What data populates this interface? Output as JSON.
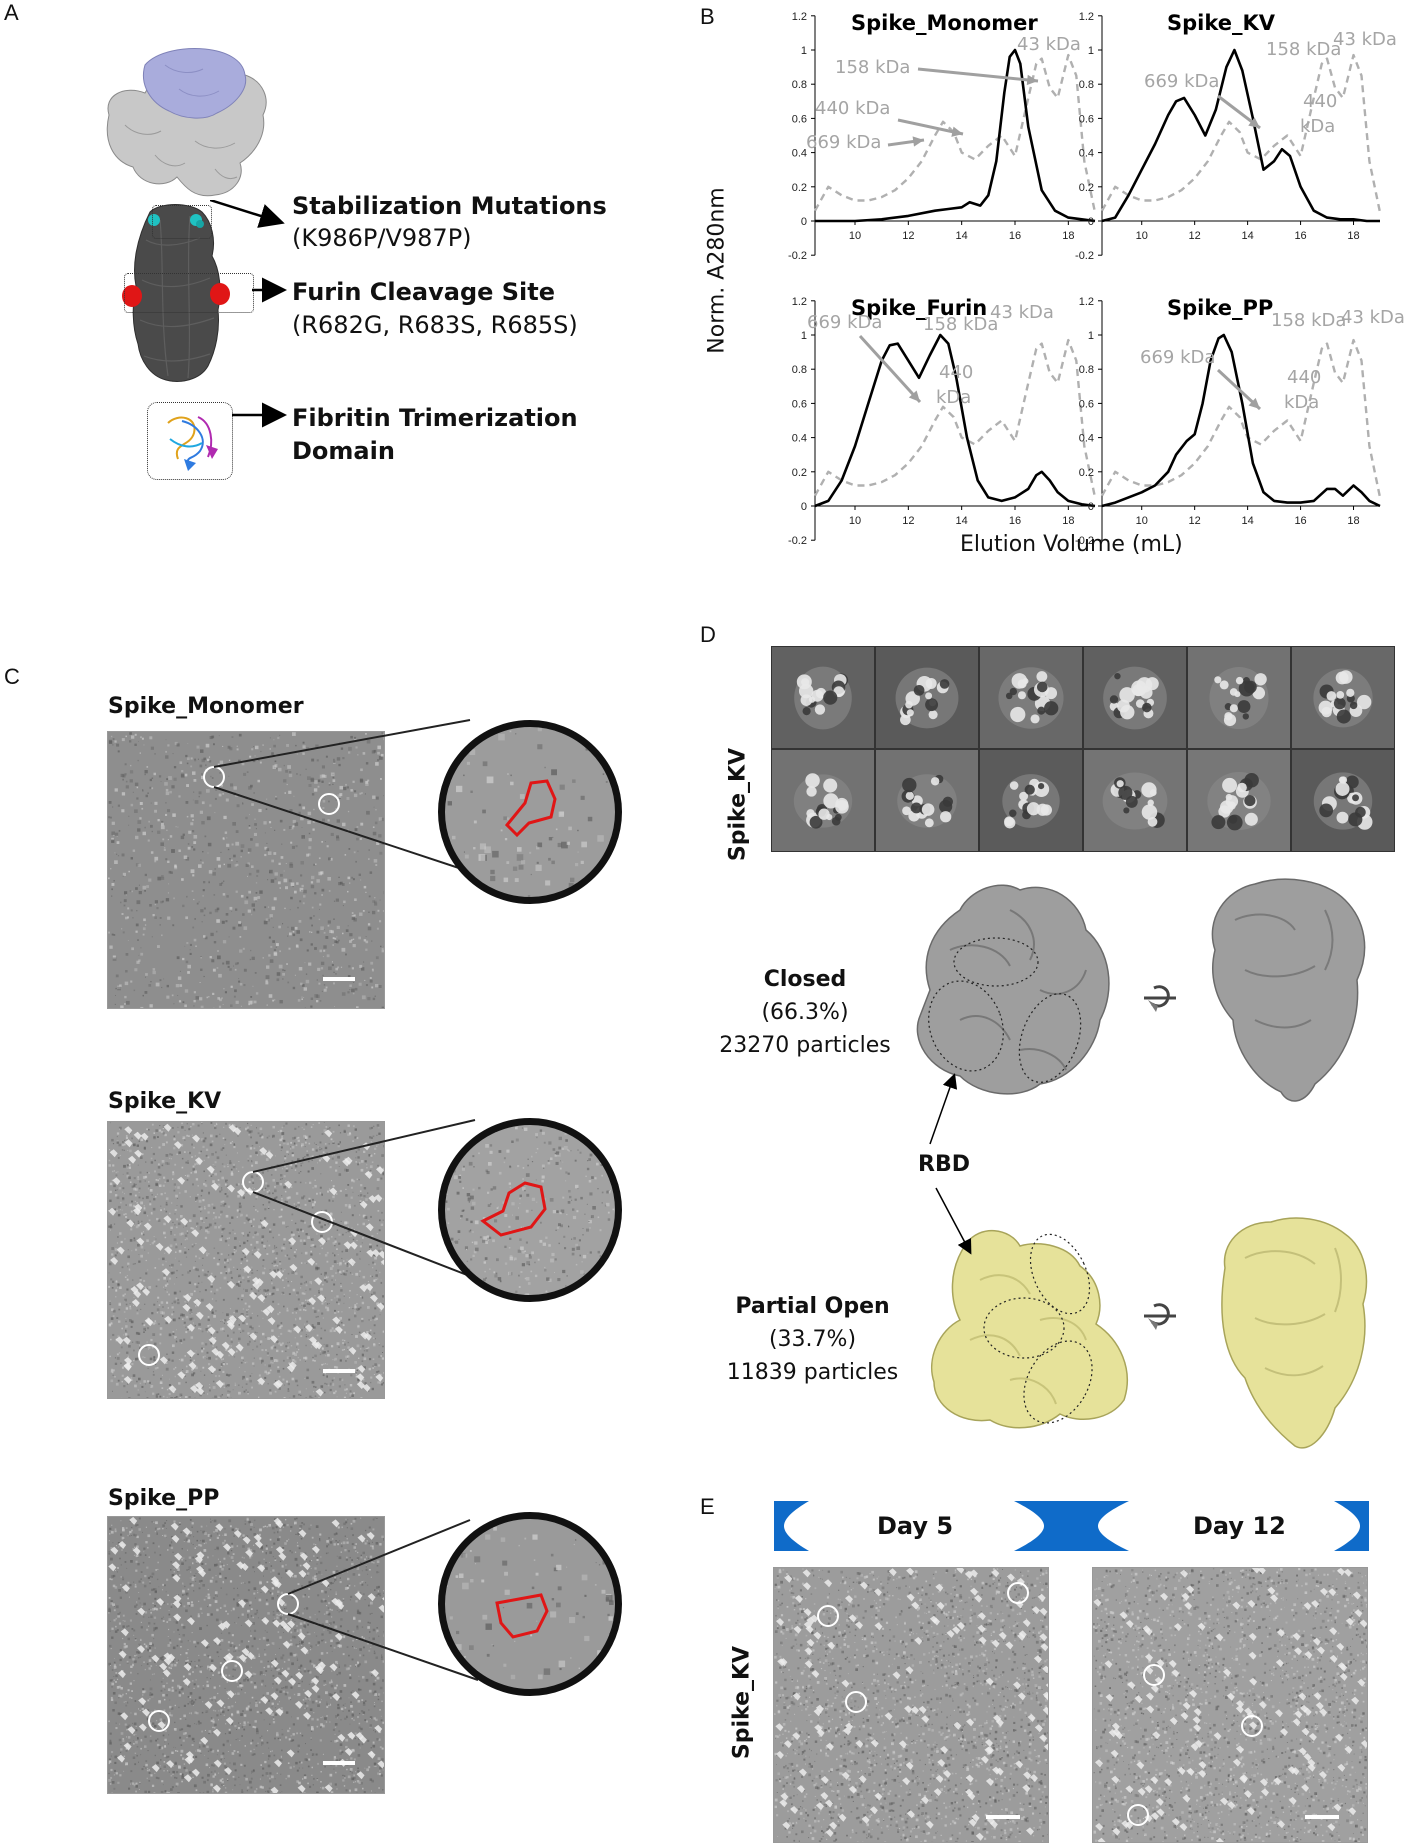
{
  "figure": {
    "panel_labels": {
      "a": "A",
      "b": "B",
      "c": "C",
      "d": "D",
      "e": "E"
    }
  },
  "panel_a": {
    "callouts": [
      {
        "title": "Stabilization Mutations",
        "detail": "(K986P/V987P)"
      },
      {
        "title": "Furin Cleavage Site",
        "detail": "(R682G, R683S, R685S)"
      },
      {
        "title": "Fibritin Trimerization",
        "detail": "Domain"
      }
    ]
  },
  "panel_b": {
    "y_axis_label": "Norm. A280nm",
    "x_axis_label": "Elution Volume (mL)",
    "y_ticks": [
      "1.2",
      "1",
      "0.8",
      "0.6",
      "0.4",
      "0.2",
      "0",
      "-0.2"
    ],
    "x_ticks": [
      "10",
      "12",
      "14",
      "16",
      "18"
    ],
    "marker_labels": {
      "m669": "669 kDa",
      "m440": "440 kDa",
      "m440a": "440",
      "m440b": "kDa",
      "m158": "158 kDa",
      "m43": "43 kDa"
    }
  },
  "chart_data": [
    {
      "type": "line",
      "title": "Spike_Monomer",
      "xlabel": "Elution Volume (mL)",
      "ylabel": "Norm. A280nm",
      "xlim": [
        8.5,
        19
      ],
      "ylim": [
        -0.2,
        1.2
      ],
      "series": [
        {
          "x": [
            8.5,
            9,
            10,
            11,
            12,
            13,
            13.5,
            14,
            14.3,
            14.7,
            15,
            15.3,
            15.6,
            15.8,
            16,
            16.2,
            16.5,
            17,
            17.5,
            18,
            18.5,
            19
          ],
          "y": [
            0,
            0,
            0,
            0.01,
            0.03,
            0.06,
            0.07,
            0.08,
            0.11,
            0.09,
            0.15,
            0.35,
            0.75,
            0.96,
            1.0,
            0.92,
            0.55,
            0.18,
            0.06,
            0.02,
            0.01,
            0
          ]
        },
        {
          "x": [
            8.5,
            9,
            9.5,
            10,
            10.5,
            11,
            11.5,
            12,
            12.5,
            13,
            13.3,
            13.7,
            14,
            14.5,
            15,
            15.5,
            16,
            16.5,
            16.8,
            17,
            17.3,
            17.6,
            18,
            18.3,
            18.6,
            19
          ],
          "y": [
            0.06,
            0.2,
            0.15,
            0.12,
            0.12,
            0.14,
            0.18,
            0.25,
            0.35,
            0.5,
            0.58,
            0.52,
            0.4,
            0.36,
            0.44,
            0.5,
            0.38,
            0.72,
            0.92,
            0.95,
            0.78,
            0.72,
            0.97,
            0.85,
            0.35,
            0.05
          ]
        }
      ]
    },
    {
      "type": "line",
      "title": "Spike_KV",
      "xlabel": "Elution Volume (mL)",
      "ylabel": "Norm. A280nm",
      "xlim": [
        8.5,
        19
      ],
      "ylim": [
        -0.2,
        1.2
      ],
      "series": [
        {
          "x": [
            8.5,
            9,
            9.5,
            10,
            10.5,
            11,
            11.3,
            11.6,
            12,
            12.4,
            12.8,
            13.2,
            13.5,
            13.8,
            14.2,
            14.6,
            15,
            15.3,
            15.6,
            16,
            16.5,
            17,
            17.5,
            18,
            18.5,
            19
          ],
          "y": [
            0,
            0.02,
            0.15,
            0.3,
            0.45,
            0.62,
            0.7,
            0.72,
            0.62,
            0.5,
            0.65,
            0.9,
            1.0,
            0.88,
            0.6,
            0.3,
            0.35,
            0.42,
            0.38,
            0.2,
            0.06,
            0.02,
            0.01,
            0.01,
            0,
            0
          ]
        },
        {
          "x": [
            8.5,
            9,
            9.5,
            10,
            10.5,
            11,
            11.5,
            12,
            12.5,
            13,
            13.3,
            13.7,
            14,
            14.5,
            15,
            15.5,
            16,
            16.5,
            16.8,
            17,
            17.3,
            17.6,
            18,
            18.3,
            18.6,
            19
          ],
          "y": [
            0.06,
            0.2,
            0.15,
            0.12,
            0.12,
            0.14,
            0.18,
            0.25,
            0.35,
            0.5,
            0.58,
            0.52,
            0.4,
            0.36,
            0.44,
            0.5,
            0.38,
            0.72,
            0.92,
            0.95,
            0.78,
            0.72,
            0.97,
            0.85,
            0.35,
            0.05
          ]
        }
      ]
    },
    {
      "type": "line",
      "title": "Spike_Furin",
      "xlabel": "Elution Volume (mL)",
      "ylabel": "Norm. A280nm",
      "xlim": [
        8.5,
        19
      ],
      "ylim": [
        -0.2,
        1.2
      ],
      "series": [
        {
          "x": [
            8.5,
            9,
            9.5,
            10,
            10.5,
            11,
            11.3,
            11.6,
            12,
            12.4,
            12.8,
            13.2,
            13.5,
            13.8,
            14.2,
            14.6,
            15,
            15.5,
            16,
            16.5,
            16.8,
            17,
            17.3,
            17.6,
            18,
            18.5,
            19
          ],
          "y": [
            0,
            0.03,
            0.15,
            0.35,
            0.6,
            0.85,
            0.94,
            0.95,
            0.85,
            0.75,
            0.88,
            1.0,
            0.95,
            0.75,
            0.4,
            0.15,
            0.05,
            0.03,
            0.05,
            0.1,
            0.18,
            0.2,
            0.15,
            0.08,
            0.03,
            0.01,
            0
          ]
        },
        {
          "x": [
            8.5,
            9,
            9.5,
            10,
            10.5,
            11,
            11.5,
            12,
            12.5,
            13,
            13.3,
            13.7,
            14,
            14.5,
            15,
            15.5,
            16,
            16.5,
            16.8,
            17,
            17.3,
            17.6,
            18,
            18.3,
            18.6,
            19
          ],
          "y": [
            0.06,
            0.2,
            0.15,
            0.12,
            0.12,
            0.14,
            0.18,
            0.25,
            0.35,
            0.5,
            0.58,
            0.52,
            0.4,
            0.36,
            0.44,
            0.5,
            0.38,
            0.72,
            0.92,
            0.95,
            0.78,
            0.72,
            0.97,
            0.85,
            0.35,
            0.05
          ]
        }
      ]
    },
    {
      "type": "line",
      "title": "Spike_PP",
      "xlabel": "Elution Volume (mL)",
      "ylabel": "Norm. A280nm",
      "xlim": [
        8.5,
        19
      ],
      "ylim": [
        -0.2,
        1.2
      ],
      "series": [
        {
          "x": [
            8.5,
            9,
            9.5,
            10,
            10.5,
            11,
            11.3,
            11.7,
            12,
            12.3,
            12.6,
            12.9,
            13.1,
            13.4,
            13.8,
            14.2,
            14.6,
            15,
            15.5,
            16,
            16.5,
            17,
            17.3,
            17.6,
            18,
            18.3,
            18.6,
            19
          ],
          "y": [
            0,
            0.02,
            0.05,
            0.08,
            0.12,
            0.2,
            0.3,
            0.38,
            0.42,
            0.6,
            0.85,
            0.98,
            1.0,
            0.9,
            0.6,
            0.25,
            0.08,
            0.03,
            0.02,
            0.02,
            0.03,
            0.1,
            0.1,
            0.06,
            0.12,
            0.08,
            0.03,
            0
          ]
        },
        {
          "x": [
            8.5,
            9,
            9.5,
            10,
            10.5,
            11,
            11.5,
            12,
            12.5,
            13,
            13.3,
            13.7,
            14,
            14.5,
            15,
            15.5,
            16,
            16.5,
            16.8,
            17,
            17.3,
            17.6,
            18,
            18.3,
            18.6,
            19
          ],
          "y": [
            0.06,
            0.2,
            0.15,
            0.12,
            0.12,
            0.14,
            0.18,
            0.25,
            0.35,
            0.5,
            0.58,
            0.52,
            0.4,
            0.36,
            0.44,
            0.5,
            0.38,
            0.72,
            0.92,
            0.95,
            0.78,
            0.72,
            0.97,
            0.85,
            0.35,
            0.05
          ]
        }
      ]
    }
  ],
  "panel_c": {
    "micrographs": [
      {
        "title": "Spike_Monomer"
      },
      {
        "title": "Spike_KV"
      },
      {
        "title": "Spike_PP"
      }
    ]
  },
  "panel_d": {
    "row_label": "Spike_KV",
    "rbd_label": "RBD",
    "maps": [
      {
        "state": "Closed",
        "percent": "(66.3%)",
        "particles": "23270 particles",
        "color": "#9e9e9e"
      },
      {
        "state": "Partial Open",
        "percent": "(33.7%)",
        "particles": "11839 particles",
        "color": "#e6e29a"
      }
    ]
  },
  "panel_e": {
    "row_label": "Spike_KV",
    "days": [
      "Day 5",
      "Day 12"
    ],
    "banner_color": "#0f6bc9"
  }
}
